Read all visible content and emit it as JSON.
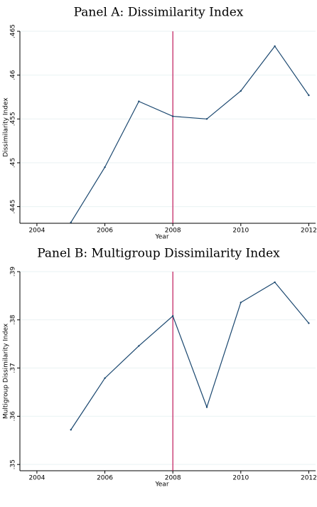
{
  "chart_data": [
    {
      "type": "line",
      "title": "Panel A: Dissimilarity Index",
      "x_label": "Year",
      "y_label": "Dissimilarity Index",
      "x": [
        2005,
        2006,
        2007,
        2008,
        2009,
        2010,
        2011,
        2012
      ],
      "values": [
        0.4432,
        0.4495,
        0.457,
        0.4553,
        0.455,
        0.4582,
        0.4633,
        0.4577
      ],
      "color": "#1a476f",
      "xlim": [
        2003.5,
        2012.2
      ],
      "xticks": [
        2004,
        2006,
        2008,
        2010,
        2012
      ],
      "ylim": [
        0.4431,
        0.465
      ],
      "yticks": [
        {
          "value": 0.445,
          "label": ".445"
        },
        {
          "value": 0.45,
          "label": ".45"
        },
        {
          "value": 0.455,
          "label": ".455"
        },
        {
          "value": 0.46,
          "label": ".46"
        },
        {
          "value": 0.465,
          "label": ".465"
        }
      ],
      "grid": true,
      "vline": 2008,
      "vline_color": "#c0185a"
    },
    {
      "type": "line",
      "title": "Panel B: Multigroup Dissimilarity Index",
      "x_label": "Year",
      "y_label": "Multigroup Dissimilarity Index",
      "x": [
        2005,
        2006,
        2007,
        2008,
        2009,
        2010,
        2011,
        2012
      ],
      "values": [
        0.3572,
        0.3679,
        0.3746,
        0.3808,
        0.3619,
        0.3836,
        0.3878,
        0.3793
      ],
      "color": "#1a476f",
      "xlim": [
        2003.5,
        2012.2
      ],
      "xticks": [
        2004,
        2006,
        2008,
        2010,
        2012
      ],
      "ylim": [
        0.3487,
        0.39
      ],
      "yticks": [
        {
          "value": 0.35,
          "label": ".35"
        },
        {
          "value": 0.36,
          "label": ".36"
        },
        {
          "value": 0.37,
          "label": ".37"
        },
        {
          "value": 0.38,
          "label": ".38"
        },
        {
          "value": 0.39,
          "label": ".39"
        }
      ],
      "grid": true,
      "vline": 2008,
      "vline_color": "#c0185a"
    }
  ]
}
